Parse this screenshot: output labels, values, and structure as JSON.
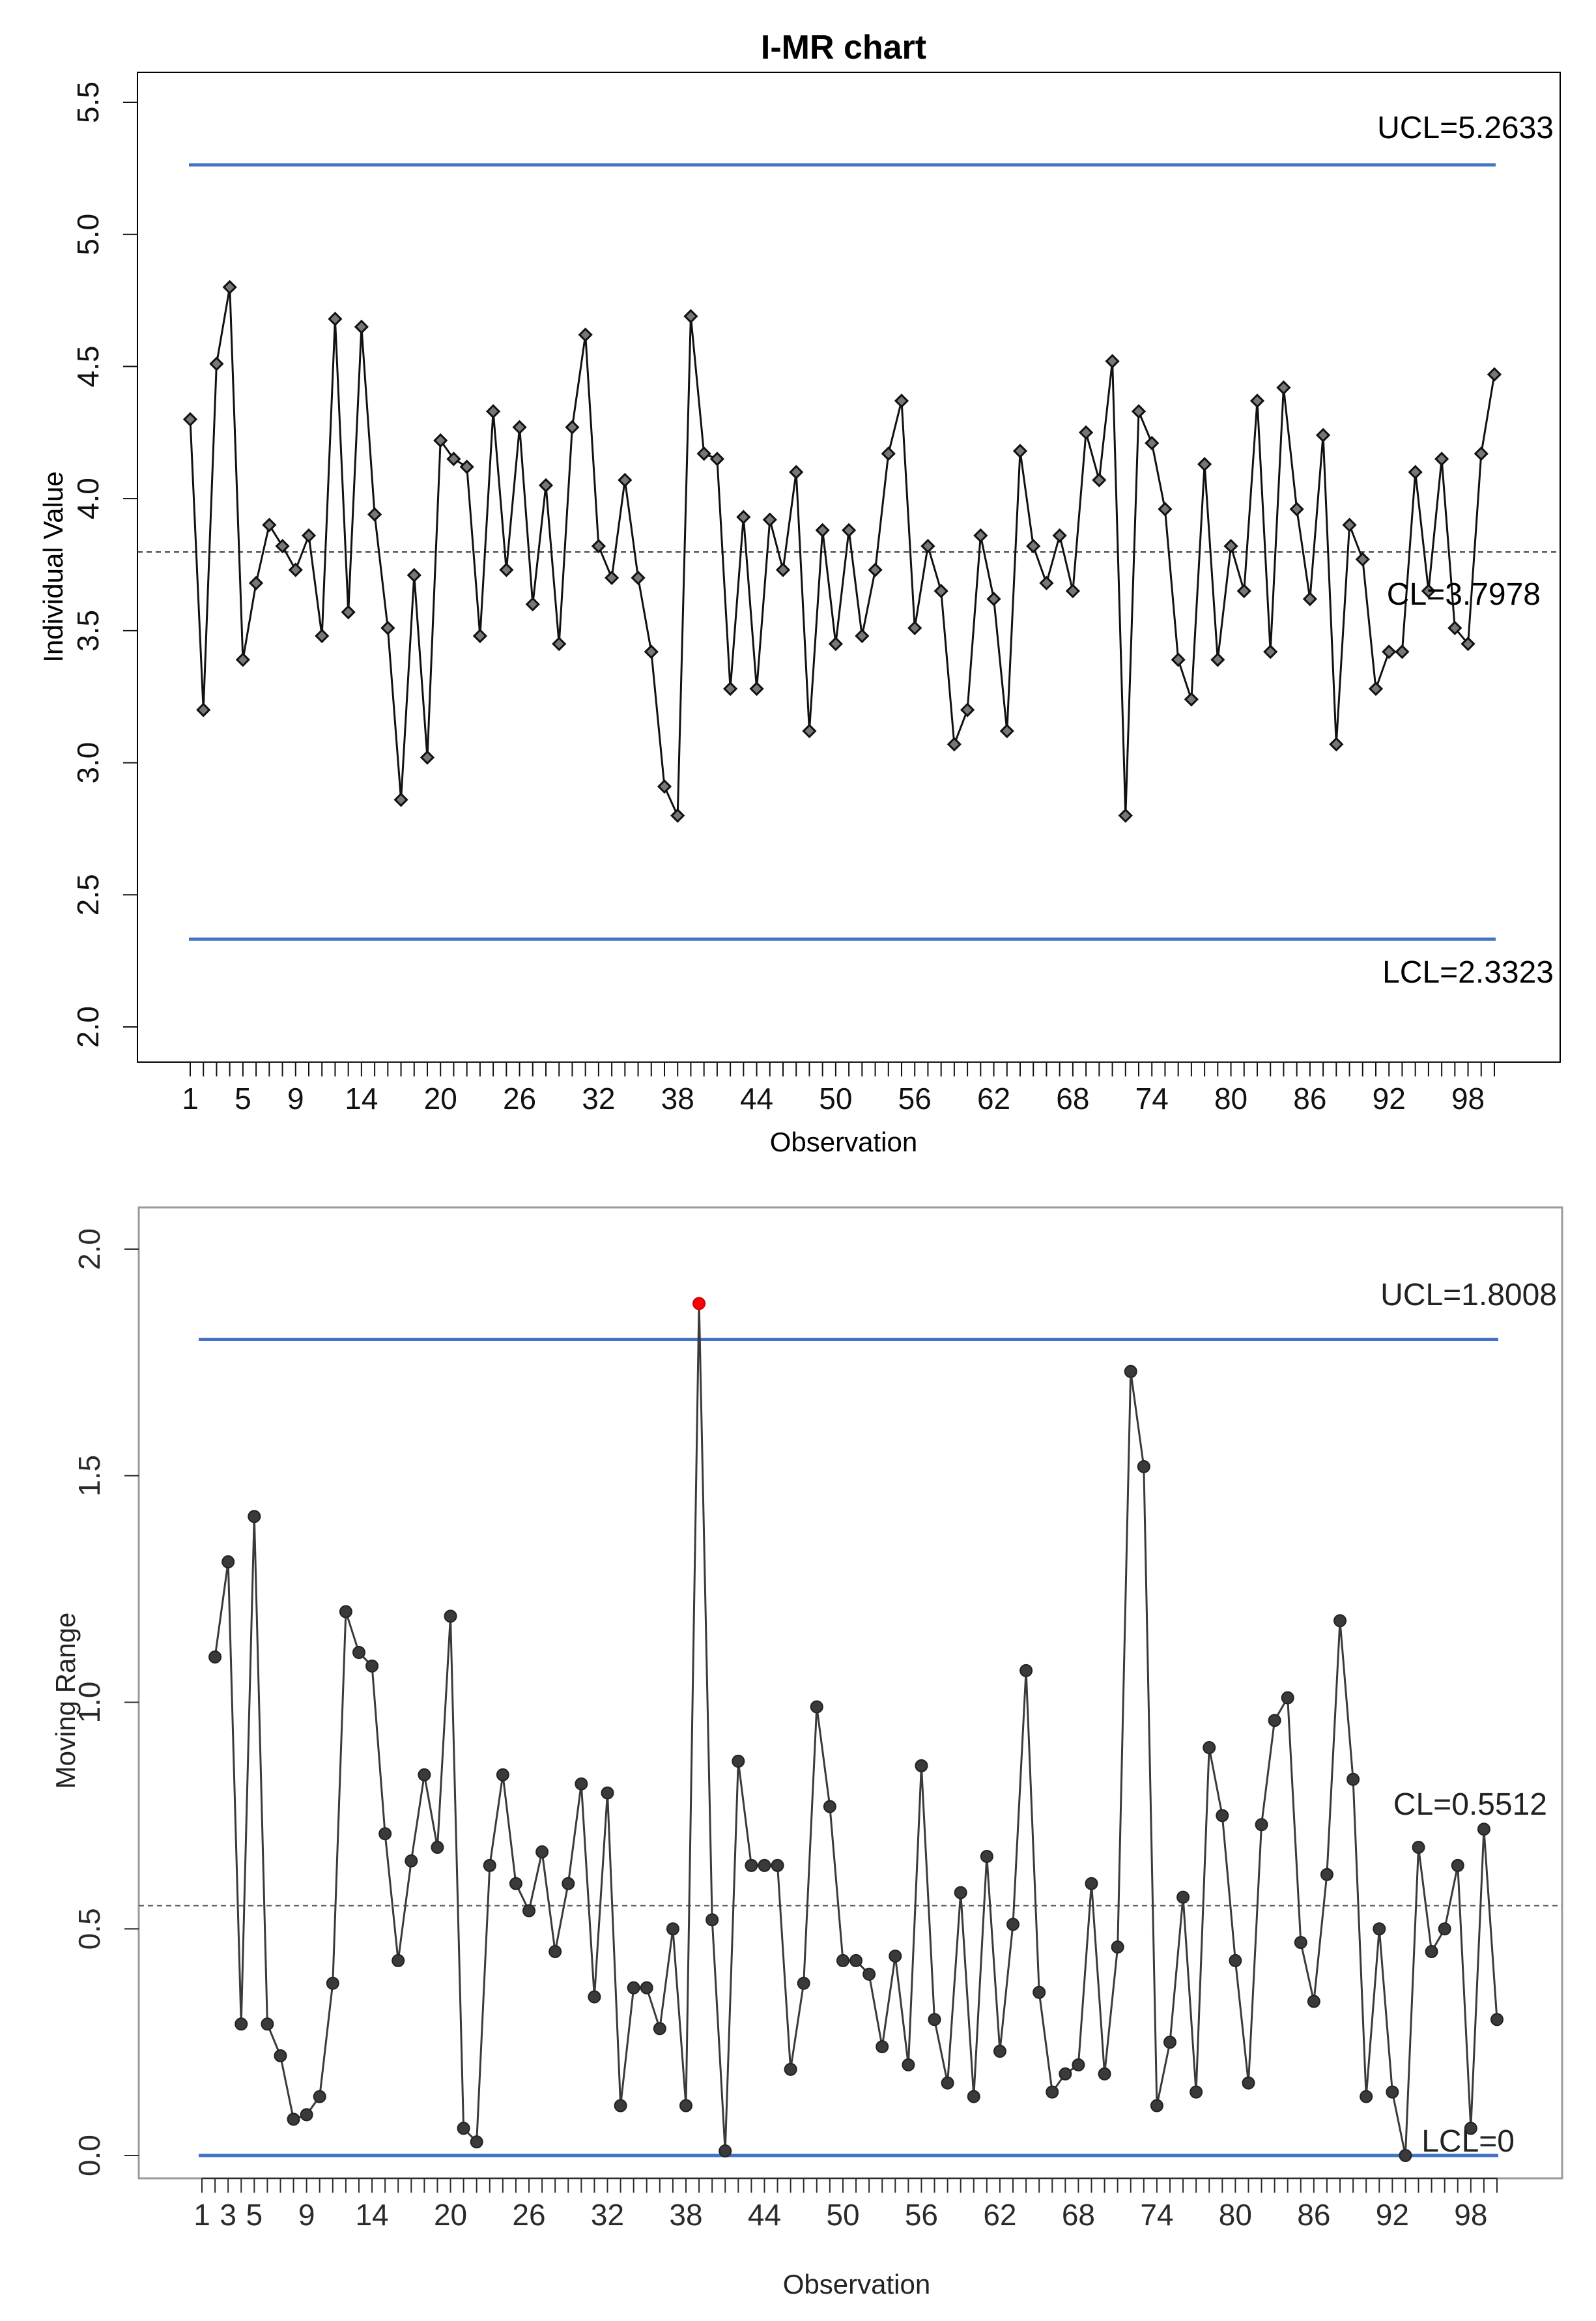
{
  "chart_data": [
    {
      "type": "line",
      "title": "I-MR chart",
      "xlabel": "Observation",
      "ylabel": "Individual Value",
      "x_ticks": [
        "1",
        "5",
        "9",
        "14",
        "20",
        "26",
        "32",
        "38",
        "44",
        "50",
        "56",
        "62",
        "68",
        "74",
        "80",
        "86",
        "92",
        "98"
      ],
      "ylim": [
        2.0,
        5.5
      ],
      "y_ticks": [
        "2.0",
        "2.5",
        "3.0",
        "3.5",
        "4.0",
        "4.5",
        "5.0",
        "5.5"
      ],
      "limits": {
        "ucl": 5.2633,
        "ucl_label": "UCL=5.2633",
        "cl": 3.7978,
        "cl_label": "CL=3.7978",
        "lcl": 2.3323,
        "lcl_label": "LCL=2.3323"
      },
      "x": [
        1,
        2,
        3,
        4,
        5,
        6,
        7,
        8,
        9,
        10,
        11,
        12,
        13,
        14,
        15,
        16,
        17,
        18,
        19,
        20,
        21,
        22,
        23,
        24,
        25,
        26,
        27,
        28,
        29,
        30,
        31,
        32,
        33,
        34,
        35,
        36,
        37,
        38,
        39,
        40,
        41,
        42,
        43,
        44,
        45,
        46,
        47,
        48,
        49,
        50,
        51,
        52,
        53,
        54,
        55,
        56,
        57,
        58,
        59,
        60,
        61,
        62,
        63,
        64,
        65,
        66,
        67,
        68,
        69,
        70,
        71,
        72,
        73,
        74,
        75,
        76,
        77,
        78,
        79,
        80,
        81,
        82,
        83,
        84,
        85,
        86,
        87,
        88,
        89,
        90,
        91,
        92,
        93,
        94,
        95,
        96,
        97,
        98,
        99,
        100
      ],
      "values": [
        4.3,
        3.2,
        4.51,
        4.8,
        3.39,
        3.68,
        3.9,
        3.82,
        3.73,
        3.86,
        3.48,
        4.68,
        3.57,
        4.65,
        3.94,
        3.51,
        2.86,
        3.71,
        3.02,
        4.22,
        4.15,
        4.12,
        3.48,
        4.33,
        3.73,
        4.27,
        3.6,
        4.05,
        3.45,
        4.27,
        4.62,
        3.82,
        3.7,
        4.07,
        3.7,
        3.42,
        2.91,
        2.8,
        4.69,
        4.17,
        4.15,
        3.28,
        3.93,
        3.28,
        3.92,
        3.73,
        4.1,
        3.12,
        3.88,
        3.45,
        3.88,
        3.48,
        3.73,
        4.17,
        4.37,
        3.51,
        3.82,
        3.65,
        3.07,
        3.2,
        3.86,
        3.62,
        3.12,
        4.18,
        3.82,
        3.68,
        3.86,
        3.65,
        4.25,
        4.07,
        4.52,
        2.8,
        4.33,
        4.21,
        3.96,
        3.39,
        3.24,
        4.13,
        3.39,
        3.82,
        3.65,
        4.37,
        3.42,
        4.42,
        3.96,
        3.62,
        4.24,
        3.07,
        3.9,
        3.77,
        3.28,
        3.42,
        3.42,
        4.1,
        3.65,
        4.15,
        3.51,
        3.45,
        4.17,
        4.47
      ]
    },
    {
      "type": "line",
      "title": "",
      "xlabel": "Observation",
      "ylabel": "Moving Range",
      "x_ticks": [
        "1",
        "3",
        "5",
        "9",
        "14",
        "20",
        "26",
        "32",
        "38",
        "44",
        "50",
        "56",
        "62",
        "68",
        "74",
        "80",
        "86",
        "92",
        "98"
      ],
      "ylim": [
        0.0,
        2.0
      ],
      "y_ticks": [
        "0.0",
        "0.5",
        "1.0",
        "1.5",
        "2.0"
      ],
      "limits": {
        "ucl": 1.8008,
        "ucl_label": "UCL=1.8008",
        "cl": 0.5512,
        "cl_label": "CL=0.5512",
        "lcl": 0,
        "lcl_label": "LCL=0"
      },
      "out_of_control_color": "#ff0000",
      "x": [
        2,
        3,
        4,
        5,
        6,
        7,
        8,
        9,
        10,
        11,
        12,
        13,
        14,
        15,
        16,
        17,
        18,
        19,
        20,
        21,
        22,
        23,
        24,
        25,
        26,
        27,
        28,
        29,
        30,
        31,
        32,
        33,
        34,
        35,
        36,
        37,
        38,
        39,
        40,
        41,
        42,
        43,
        44,
        45,
        46,
        47,
        48,
        49,
        50,
        51,
        52,
        53,
        54,
        55,
        56,
        57,
        58,
        59,
        60,
        61,
        62,
        63,
        64,
        65,
        66,
        67,
        68,
        69,
        70,
        71,
        72,
        73,
        74,
        75,
        76,
        77,
        78,
        79,
        80,
        81,
        82,
        83,
        84,
        85,
        86,
        87,
        88,
        89,
        90,
        91,
        92,
        93,
        94,
        95,
        96,
        97,
        98,
        99,
        100
      ],
      "values": [
        1.1,
        1.31,
        0.29,
        1.41,
        0.29,
        0.22,
        0.08,
        0.09,
        0.13,
        0.38,
        1.2,
        1.11,
        1.08,
        0.71,
        0.43,
        0.65,
        0.84,
        0.68,
        1.19,
        0.06,
        0.03,
        0.64,
        0.84,
        0.6,
        0.54,
        0.67,
        0.45,
        0.6,
        0.82,
        0.35,
        0.8,
        0.11,
        0.37,
        0.37,
        0.28,
        0.5,
        0.11,
        1.88,
        0.52,
        0.01,
        0.87,
        0.64,
        0.64,
        0.64,
        0.19,
        0.38,
        0.99,
        0.77,
        0.43,
        0.43,
        0.4,
        0.24,
        0.44,
        0.2,
        0.86,
        0.3,
        0.16,
        0.58,
        0.13,
        0.66,
        0.23,
        0.51,
        1.07,
        0.36,
        0.14,
        0.18,
        0.2,
        0.6,
        0.18,
        0.46,
        1.73,
        1.52,
        0.11,
        0.25,
        0.57,
        0.14,
        0.9,
        0.75,
        0.43,
        0.16,
        0.73,
        0.96,
        1.01,
        0.47,
        0.34,
        0.62,
        1.18,
        0.83,
        0.13,
        0.5,
        0.14,
        0.0,
        0.68,
        0.45,
        0.5,
        0.64,
        0.06,
        0.72,
        0.3
      ]
    }
  ]
}
